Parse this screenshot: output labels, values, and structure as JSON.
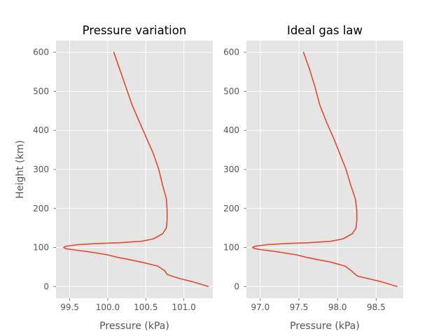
{
  "chart_data": [
    {
      "type": "line",
      "title": "Pressure variation",
      "xlabel": "Pressure (kPa)",
      "ylabel": "Height (km)",
      "xlim": [
        99.32,
        101.38
      ],
      "ylim": [
        -30,
        630
      ],
      "xticks": [
        99.5,
        100.0,
        100.5,
        101.0
      ],
      "xtick_labels": [
        "99.5",
        "100.0",
        "100.5",
        "101.0"
      ],
      "yticks": [
        0,
        100,
        200,
        300,
        400,
        500,
        600
      ],
      "ytick_labels": [
        "0",
        "100",
        "200",
        "300",
        "400",
        "500",
        "600"
      ],
      "grid": true,
      "series": [
        {
          "color": "#E24A33",
          "x": [
            101.32,
            101.12,
            100.95,
            100.85,
            100.78,
            100.75,
            100.66,
            100.45,
            100.28,
            100.12,
            100.0,
            99.75,
            99.55,
            99.45,
            99.42,
            99.45,
            99.6,
            99.85,
            100.15,
            100.45,
            100.6,
            100.72,
            100.77,
            100.78,
            100.78,
            100.77,
            100.72,
            100.67,
            100.6,
            100.51,
            100.42,
            100.32,
            100.24,
            100.16,
            100.08
          ],
          "y": [
            0,
            12,
            20,
            26,
            31,
            40,
            52,
            62,
            69,
            75,
            81,
            89,
            94,
            97,
            100,
            103,
            107,
            110,
            112,
            116,
            122,
            135,
            150,
            170,
            195,
            225,
            260,
            300,
            340,
            380,
            420,
            465,
            510,
            555,
            600
          ]
        }
      ]
    },
    {
      "type": "line",
      "title": "Ideal gas law",
      "xlabel": "Pressure (kPa)",
      "ylabel": "",
      "xlim": [
        96.82,
        98.85
      ],
      "ylim": [
        -30,
        630
      ],
      "xticks": [
        97.0,
        97.5,
        98.0,
        98.5
      ],
      "xtick_labels": [
        "97.0",
        "97.5",
        "98.0",
        "98.5"
      ],
      "yticks": [
        0,
        100,
        200,
        300,
        400,
        500,
        600
      ],
      "ytick_labels": [
        "0",
        "100",
        "200",
        "300",
        "400",
        "500",
        "600"
      ],
      "grid": true,
      "series": [
        {
          "color": "#E24A33",
          "x": [
            98.77,
            98.57,
            98.4,
            98.27,
            98.23,
            98.18,
            98.1,
            97.92,
            97.74,
            97.59,
            97.47,
            97.22,
            97.02,
            96.93,
            96.9,
            96.93,
            97.08,
            97.33,
            97.62,
            97.92,
            98.07,
            98.19,
            98.24,
            98.25,
            98.25,
            98.23,
            98.17,
            98.11,
            98.03,
            97.95,
            97.86,
            97.77,
            97.71,
            97.64,
            97.56
          ],
          "y": [
            0,
            12,
            20,
            26,
            31,
            40,
            52,
            62,
            69,
            75,
            81,
            89,
            94,
            97,
            100,
            103,
            107,
            110,
            112,
            116,
            122,
            135,
            150,
            170,
            195,
            225,
            260,
            300,
            340,
            380,
            420,
            465,
            510,
            555,
            600
          ]
        }
      ]
    }
  ],
  "style": {
    "axes_background": "#E5E5E5",
    "grid_color": "#FFFFFF",
    "tick_color": "#555555",
    "label_color": "#555555",
    "title_color": "#000000"
  }
}
